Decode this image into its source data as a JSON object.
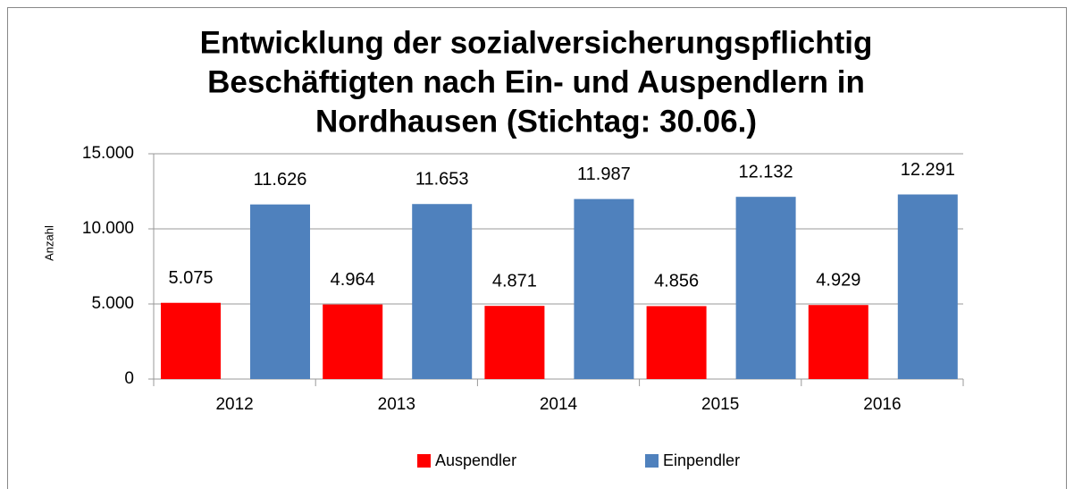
{
  "chart_data": {
    "type": "bar",
    "title": [
      "Entwicklung der sozialversicherungspflichtig",
      "Beschäftigten nach Ein- und Auspendlern in",
      "Nordhausen (Stichtag: 30.06.)"
    ],
    "y_label": "Anzahl",
    "categories": [
      "2012",
      "2013",
      "2014",
      "2015",
      "2016"
    ],
    "series": [
      {
        "name": "Auspendler",
        "color": "#ff0000",
        "values": [
          5075,
          4964,
          4871,
          4856,
          4929
        ],
        "value_labels": [
          "5.075",
          "4.964",
          "4.871",
          "4.856",
          "4.929"
        ]
      },
      {
        "name": "Einpendler",
        "color": "#4f81bd",
        "values": [
          11626,
          11653,
          11987,
          12132,
          12291
        ],
        "value_labels": [
          "11.626",
          "11.653",
          "11.987",
          "12.132",
          "12.291"
        ]
      }
    ],
    "ylim": [
      0,
      15000
    ],
    "yticks": [
      0,
      {
        "value": 5000,
        "label": "5.000"
      },
      {
        "value": 10000,
        "label": "10.000"
      },
      {
        "value": 15000,
        "label": "15.000"
      }
    ],
    "grid": true,
    "legend": "bottom"
  }
}
